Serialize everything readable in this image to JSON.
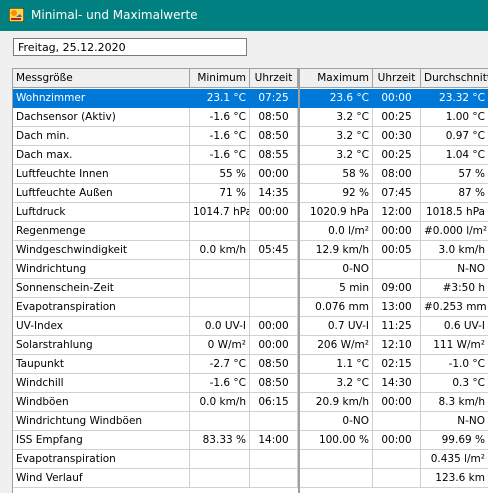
{
  "window": {
    "title": "Minimal- und Maximalwerte",
    "icon": "weather-station-icon"
  },
  "date_field": {
    "value": "Freitag, 25.12.2020"
  },
  "table": {
    "columns": [
      "Messgröße",
      "Minimum",
      "Uhrzeit",
      "Maximum",
      "Uhrzeit",
      "Durchschnitt"
    ],
    "rows": [
      [
        "Wohnzimmer",
        "23.1 °C",
        "07:25",
        "23.6 °C",
        "00:00",
        "23.32 °C"
      ],
      [
        "Dachsensor (Aktiv)",
        "-1.6 °C",
        "08:50",
        "3.2 °C",
        "00:25",
        "1.00 °C"
      ],
      [
        "Dach min.",
        "-1.6 °C",
        "08:50",
        "3.2 °C",
        "00:30",
        "0.97 °C"
      ],
      [
        "Dach max.",
        "-1.6 °C",
        "08:55",
        "3.2 °C",
        "00:25",
        "1.04 °C"
      ],
      [
        "Luftfeuchte Innen",
        "55 %",
        "00:00",
        "58 %",
        "08:00",
        "57 %"
      ],
      [
        "Luftfeuchte Außen",
        "71 %",
        "14:35",
        "92 %",
        "07:45",
        "87 %"
      ],
      [
        "Luftdruck",
        "1014.7 hPa",
        "00:00",
        "1020.9 hPa",
        "12:00",
        "1018.5 hPa"
      ],
      [
        "Regenmenge",
        "",
        "",
        "0.0 l/m²",
        "00:00",
        "#0.000 l/m²"
      ],
      [
        "Windgeschwindigkeit",
        "0.0 km/h",
        "05:45",
        "12.9 km/h",
        "00:05",
        "3.0 km/h"
      ],
      [
        "Windrichtung",
        "",
        "",
        "0-NO",
        "",
        "N-NO"
      ],
      [
        "Sonnenschein-Zeit",
        "",
        "",
        "5 min",
        "09:00",
        "#3:50 h"
      ],
      [
        "Evapotranspiration",
        "",
        "",
        "0.076 mm",
        "13:00",
        "#0.253 mm"
      ],
      [
        "UV-Index",
        "0.0 UV-I",
        "00:00",
        "0.7 UV-I",
        "11:25",
        "0.6 UV-I"
      ],
      [
        "Solarstrahlung",
        "0 W/m²",
        "00:00",
        "206 W/m²",
        "12:10",
        "111 W/m²"
      ],
      [
        "Taupunkt",
        "-2.7 °C",
        "08:50",
        "1.1 °C",
        "02:15",
        "-1.0 °C"
      ],
      [
        "Windchill",
        "-1.6 °C",
        "08:50",
        "3.2 °C",
        "14:30",
        "0.3 °C"
      ],
      [
        "Windböen",
        "0.0 km/h",
        "06:15",
        "20.9 km/h",
        "00:00",
        "8.3 km/h"
      ],
      [
        "Windrichtung Windböen",
        "",
        "",
        "0-NO",
        "",
        "N-NO"
      ],
      [
        "ISS Empfang",
        "83.33 %",
        "14:00",
        "100.00 %",
        "00:00",
        "99.69 %"
      ],
      [
        "Evapotranspiration",
        "",
        "",
        "",
        "",
        "0.435 l/m²"
      ],
      [
        "Wind Verlauf",
        "",
        "",
        "",
        "",
        "123.6 km"
      ]
    ],
    "selected_row": 0
  }
}
